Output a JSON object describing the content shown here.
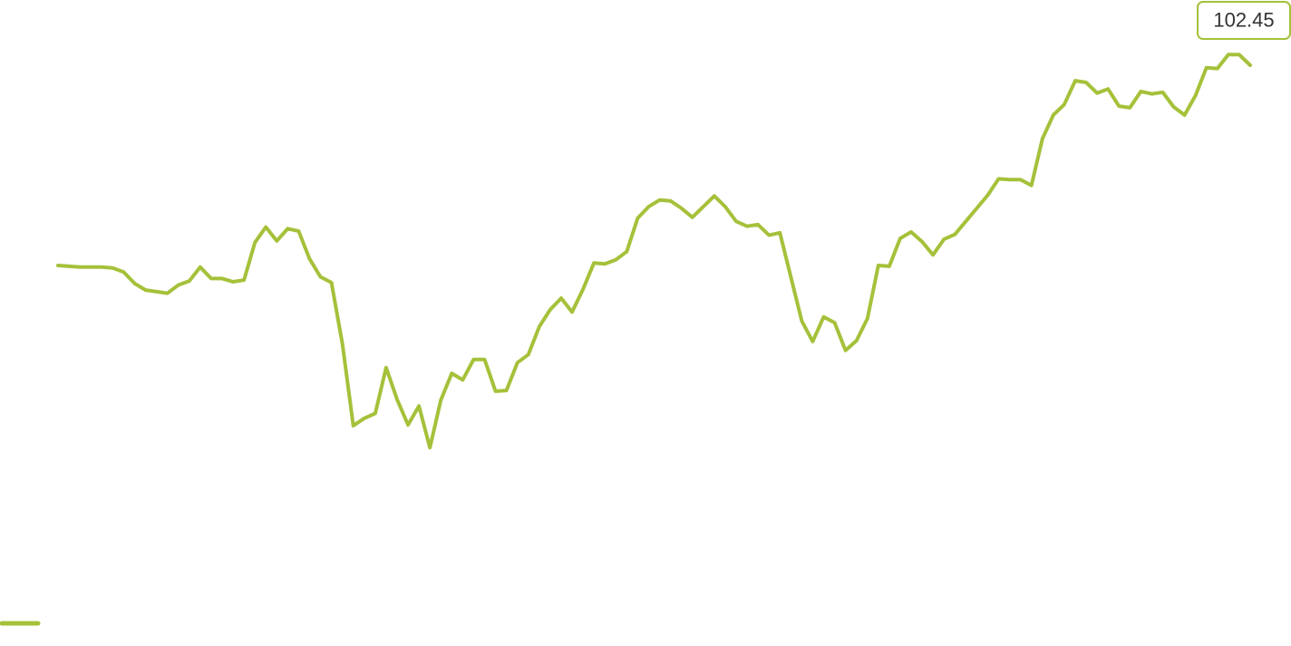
{
  "chart_data": {
    "type": "line",
    "categories": [
      null,
      null,
      null,
      null,
      null,
      null,
      null,
      null,
      null,
      null,
      null,
      null,
      null,
      null,
      null,
      null,
      null,
      null,
      null,
      null,
      null,
      null,
      null,
      null,
      null,
      null,
      null,
      null,
      null,
      null,
      null,
      null,
      null,
      null,
      null,
      null,
      null,
      null,
      null,
      null,
      null,
      null,
      null,
      null,
      null,
      null,
      null,
      null,
      null,
      null,
      null,
      null,
      null,
      null,
      null,
      null,
      null,
      null,
      null,
      null,
      null,
      null,
      null,
      null,
      null,
      null,
      null,
      null,
      null,
      null,
      null,
      null,
      null,
      null,
      null,
      null,
      null,
      null,
      null,
      null,
      null,
      null,
      null,
      null,
      null,
      null,
      null,
      null,
      null,
      null,
      null,
      null,
      null,
      null,
      null,
      null,
      null,
      null,
      null,
      null,
      null,
      null,
      null,
      null,
      null,
      null,
      null,
      null,
      null,
      null
    ],
    "series": [
      {
        "color": "#a5c13a",
        "values": [
          100.0,
          99.99,
          99.98,
          99.98,
          99.98,
          99.97,
          99.92,
          99.78,
          99.7,
          99.68,
          99.66,
          99.76,
          99.81,
          99.98,
          99.84,
          99.84,
          99.8,
          99.82,
          100.28,
          100.47,
          100.3,
          100.45,
          100.42,
          100.08,
          99.86,
          99.79,
          99.04,
          98.04,
          98.13,
          98.19,
          98.75,
          98.36,
          98.05,
          98.28,
          97.77,
          98.35,
          98.68,
          98.6,
          98.85,
          98.85,
          98.46,
          98.47,
          98.81,
          98.91,
          99.25,
          99.46,
          99.6,
          99.43,
          99.71,
          100.03,
          100.02,
          100.07,
          100.17,
          100.58,
          100.72,
          100.8,
          100.79,
          100.7,
          100.59,
          100.72,
          100.85,
          100.72,
          100.54,
          100.48,
          100.5,
          100.37,
          100.4,
          99.86,
          99.32,
          99.07,
          99.37,
          99.3,
          98.96,
          99.08,
          99.35,
          100.0,
          99.99,
          100.33,
          100.41,
          100.29,
          100.13,
          100.32,
          100.38,
          100.54,
          100.7,
          100.86,
          101.06,
          101.05,
          101.05,
          100.98,
          101.55,
          101.84,
          101.97,
          102.26,
          102.24,
          102.11,
          102.16,
          101.95,
          101.93,
          102.13,
          102.1,
          102.12,
          101.94,
          101.84,
          102.08,
          102.42,
          102.41,
          102.58,
          102.58,
          102.45
        ]
      }
    ],
    "ylim": [
      97,
      103
    ],
    "legend": "bottom-left"
  }
}
